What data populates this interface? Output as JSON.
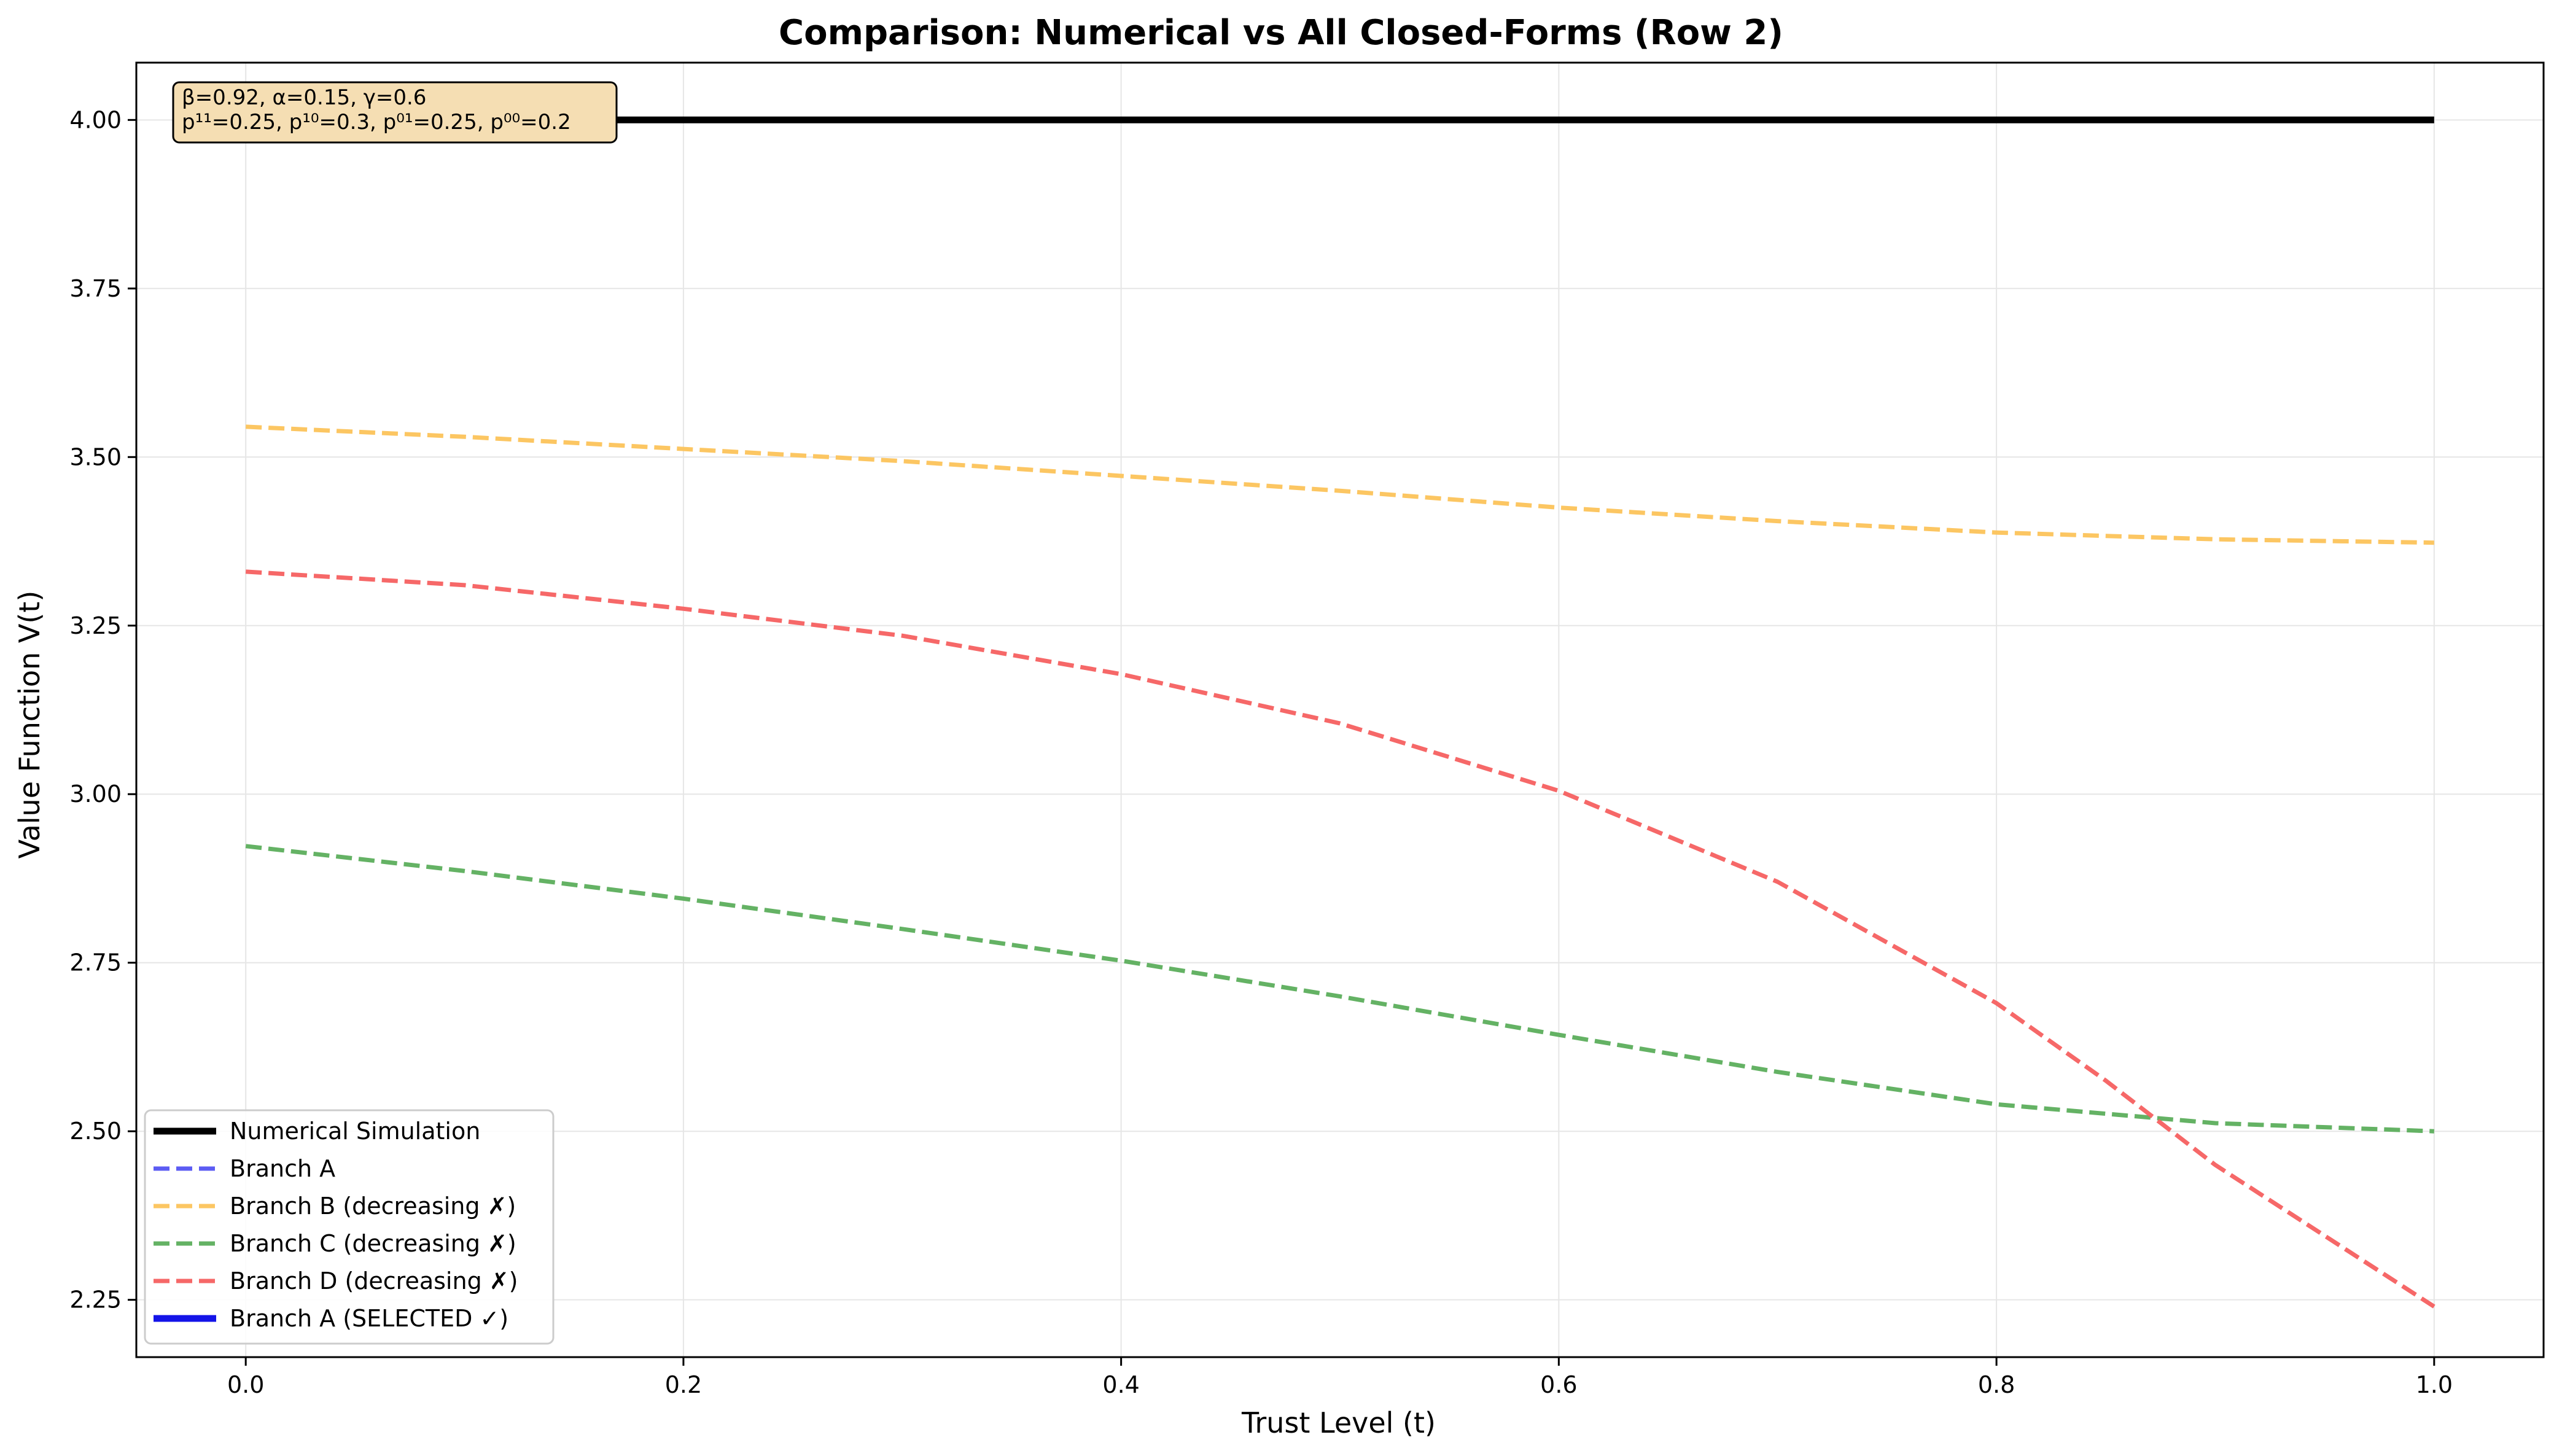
{
  "chart_data": {
    "type": "line",
    "title": "Comparison: Numerical vs All Closed-Forms (Row 2)",
    "xlabel": "Trust Level (t)",
    "ylabel": "Value Function V(t)",
    "xlim": [
      -0.05,
      1.05
    ],
    "ylim": [
      2.165,
      4.085
    ],
    "xticks": [
      0.0,
      0.2,
      0.4,
      0.6,
      0.8,
      1.0
    ],
    "xtick_labels": [
      "0.0",
      "0.2",
      "0.4",
      "0.6",
      "0.8",
      "1.0"
    ],
    "yticks": [
      2.25,
      2.5,
      2.75,
      3.0,
      3.25,
      3.5,
      3.75,
      4.0
    ],
    "ytick_labels": [
      "2.25",
      "2.50",
      "2.75",
      "3.00",
      "3.25",
      "3.50",
      "3.75",
      "4.00"
    ],
    "grid": true,
    "legend_position": "lower-left",
    "annotation": {
      "line1": "β=0.92, α=0.15, γ=0.6",
      "line2": "p¹¹=0.25, p¹⁰=0.3, p⁰¹=0.25, p⁰⁰=0.2"
    },
    "series": [
      {
        "name": "Numerical Simulation",
        "color": "#000000",
        "style": "solid",
        "width": 11,
        "opacity": 1,
        "x": [
          0.0,
          1.0
        ],
        "y": [
          4.0,
          4.0
        ]
      },
      {
        "name": "Branch A",
        "color": "#4a4af2",
        "style": "dashed",
        "width": 7,
        "opacity": 0.9,
        "x": [],
        "y": []
      },
      {
        "name": "Branch B (decreasing ✗)",
        "color": "#fcc35a",
        "style": "dashed",
        "width": 7,
        "opacity": 0.95,
        "x": [
          0.0,
          0.1,
          0.2,
          0.3,
          0.4,
          0.5,
          0.6,
          0.7,
          0.8,
          0.9,
          1.0
        ],
        "y": [
          3.545,
          3.53,
          3.512,
          3.494,
          3.472,
          3.45,
          3.425,
          3.405,
          3.388,
          3.378,
          3.373
        ]
      },
      {
        "name": "Branch C (decreasing ✗)",
        "color": "#5cae5c",
        "style": "dashed",
        "width": 7,
        "opacity": 0.95,
        "x": [
          0.0,
          0.1,
          0.2,
          0.3,
          0.4,
          0.5,
          0.6,
          0.7,
          0.8,
          0.9,
          1.0
        ],
        "y": [
          2.923,
          2.886,
          2.845,
          2.8,
          2.753,
          2.7,
          2.643,
          2.588,
          2.54,
          2.512,
          2.5
        ]
      },
      {
        "name": "Branch D (decreasing ✗)",
        "color": "#f56060",
        "style": "dashed",
        "width": 7,
        "opacity": 0.95,
        "x": [
          0.0,
          0.1,
          0.2,
          0.3,
          0.4,
          0.5,
          0.6,
          0.7,
          0.8,
          0.85,
          0.9,
          0.95,
          1.0
        ],
        "y": [
          3.33,
          3.31,
          3.275,
          3.235,
          3.178,
          3.105,
          3.005,
          2.87,
          2.69,
          2.575,
          2.45,
          2.345,
          2.24
        ]
      },
      {
        "name": "Branch A (SELECTED ✓)",
        "color": "#1414e8",
        "style": "solid",
        "width": 11,
        "opacity": 1,
        "x": [],
        "y": []
      }
    ]
  }
}
